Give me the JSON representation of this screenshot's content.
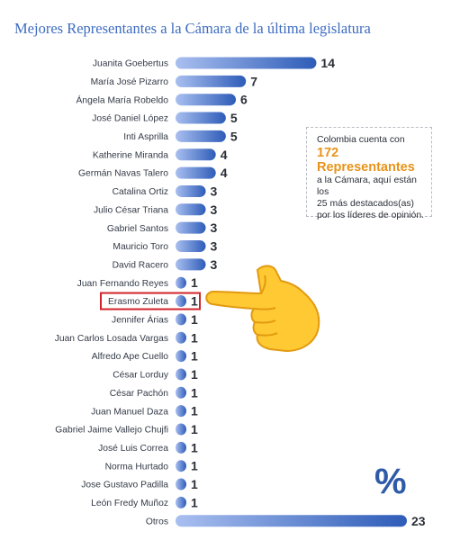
{
  "header": {
    "title": "Mejores Representantes a la Cámara de la última legislatura"
  },
  "note": {
    "line1": "Colombia cuenta con",
    "highlight_number": "172",
    "highlight_word": "Representantes",
    "line2": "a la Cámara, aquí están  los",
    "line3": "25 más destacados(as)",
    "line4": "por los líderes de opinión."
  },
  "decor": {
    "percent_symbol": "%",
    "hand_icon": "pointing-left-hand-icon"
  },
  "colors": {
    "bar_dark": "#2e5cb8",
    "bar_light": "#a9bff0",
    "title": "#3d6cc0",
    "highlight": "#e8931a",
    "marker": "#d2232a"
  },
  "chart_data": {
    "type": "bar",
    "orientation": "horizontal",
    "title": "Mejores Representantes a la Cámara de la última legislatura",
    "categories": [
      "Juanita Goebertus",
      "María José Pizarro",
      "Ángela María Robeldo",
      "José Daniel López",
      "Inti Asprilla",
      "Katherine Miranda",
      "Germán Navas Talero",
      "Catalina Ortiz",
      "Julio César Triana",
      "Gabriel Santos",
      "Mauricio Toro",
      "David Racero",
      "Juan Fernando Reyes",
      "Erasmo Zuleta",
      "Jennifer Árias",
      "Juan Carlos Losada Vargas",
      "Alfredo Ape Cuello",
      "César Lorduy",
      "César Pachón",
      "Juan Manuel Daza",
      "Gabriel Jaime Vallejo Chujfi",
      "José Luis Correa",
      "Norma Hurtado",
      "Jose Gustavo Padilla",
      "León Fredy Muñoz",
      "Otros"
    ],
    "values": [
      14,
      7,
      6,
      5,
      5,
      4,
      4,
      3,
      3,
      3,
      3,
      3,
      1,
      1,
      1,
      1,
      1,
      1,
      1,
      1,
      1,
      1,
      1,
      1,
      1,
      23
    ],
    "highlighted_category": "Erasmo Zuleta",
    "xlim": [
      0,
      23
    ],
    "grid": false,
    "legend": "none"
  }
}
